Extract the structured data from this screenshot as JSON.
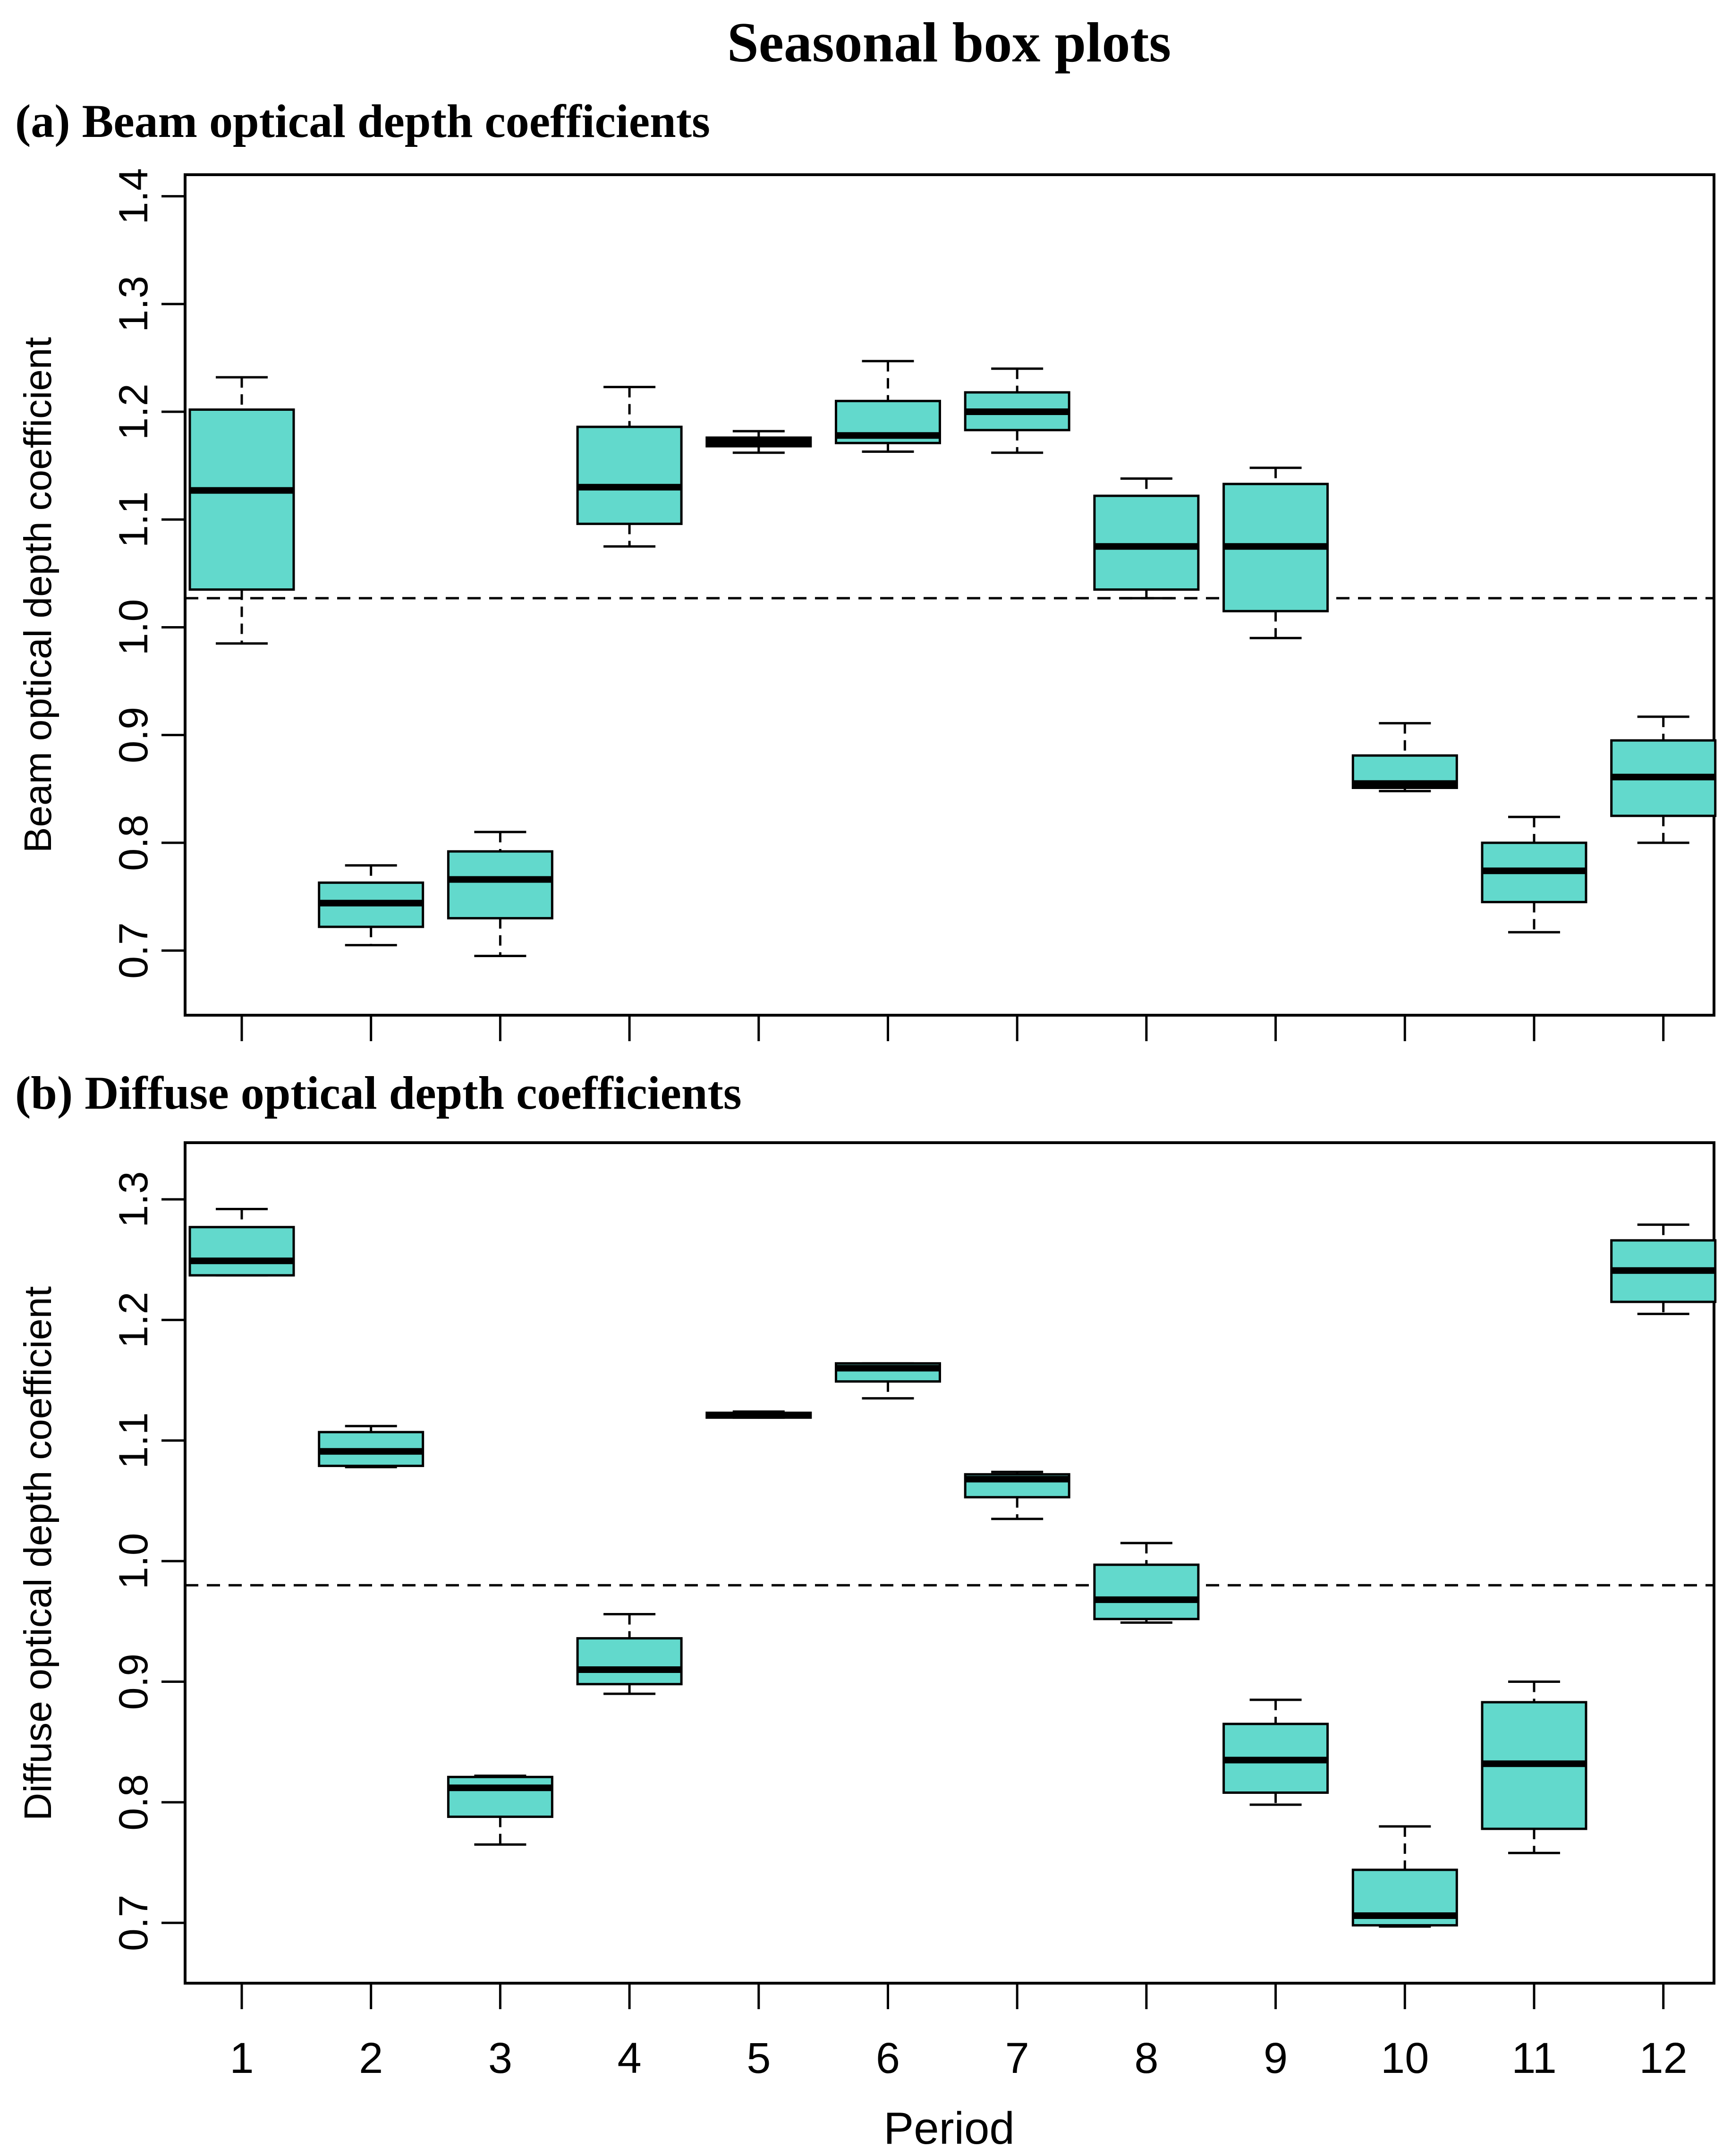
{
  "title": "Seasonal box plots",
  "xlabel": "Period",
  "colors": {
    "box_fill": "#62D9CC",
    "stroke": "#000000",
    "background": "#ffffff"
  },
  "chart_data": [
    {
      "id": "a",
      "type": "box",
      "panel_title": "(a) Beam optical depth coefficients",
      "ylabel": "Beam optical depth coefficient",
      "ylim": [
        0.64,
        1.42
      ],
      "yticks": [
        0.7,
        0.8,
        0.9,
        1.0,
        1.1,
        1.2,
        1.3,
        1.4
      ],
      "ytick_labels": [
        "0.7",
        "0.8",
        "0.9",
        "1.0",
        "1.1",
        "1.2",
        "1.3",
        "1.4"
      ],
      "reference_line": 1.027,
      "categories": [
        "1",
        "2",
        "3",
        "4",
        "5",
        "6",
        "7",
        "8",
        "9",
        "10",
        "11",
        "12"
      ],
      "boxes": [
        {
          "min": 0.985,
          "q1": 1.035,
          "median": 1.127,
          "q3": 1.202,
          "max": 1.232
        },
        {
          "min": 0.705,
          "q1": 0.722,
          "median": 0.744,
          "q3": 0.763,
          "max": 0.779
        },
        {
          "min": 0.695,
          "q1": 0.73,
          "median": 0.766,
          "q3": 0.792,
          "max": 0.81
        },
        {
          "min": 1.075,
          "q1": 1.096,
          "median": 1.13,
          "q3": 1.186,
          "max": 1.223
        },
        {
          "min": 1.162,
          "q1": 1.168,
          "median": 1.172,
          "q3": 1.176,
          "max": 1.182
        },
        {
          "min": 1.163,
          "q1": 1.171,
          "median": 1.178,
          "q3": 1.21,
          "max": 1.247
        },
        {
          "min": 1.162,
          "q1": 1.183,
          "median": 1.2,
          "q3": 1.218,
          "max": 1.24
        },
        {
          "min": 1.027,
          "q1": 1.035,
          "median": 1.075,
          "q3": 1.122,
          "max": 1.138
        },
        {
          "min": 0.99,
          "q1": 1.015,
          "median": 1.075,
          "q3": 1.133,
          "max": 1.148
        },
        {
          "min": 0.848,
          "q1": 0.851,
          "median": 0.855,
          "q3": 0.881,
          "max": 0.911
        },
        {
          "min": 0.717,
          "q1": 0.745,
          "median": 0.774,
          "q3": 0.8,
          "max": 0.824
        },
        {
          "min": 0.8,
          "q1": 0.825,
          "median": 0.861,
          "q3": 0.895,
          "max": 0.917
        }
      ]
    },
    {
      "id": "b",
      "type": "box",
      "panel_title": "(b) Diffuse optical depth coefficients",
      "ylabel": "Diffuse optical depth coefficient",
      "ylim": [
        0.65,
        1.347
      ],
      "yticks": [
        0.7,
        0.8,
        0.9,
        1.0,
        1.1,
        1.2,
        1.3
      ],
      "ytick_labels": [
        "0.7",
        "0.8",
        "0.9",
        "1.0",
        "1.1",
        "1.2",
        "1.3"
      ],
      "reference_line": 0.98,
      "categories": [
        "1",
        "2",
        "3",
        "4",
        "5",
        "6",
        "7",
        "8",
        "9",
        "10",
        "11",
        "12"
      ],
      "boxes": [
        {
          "min": 1.237,
          "q1": 1.237,
          "median": 1.249,
          "q3": 1.277,
          "max": 1.292
        },
        {
          "min": 1.078,
          "q1": 1.079,
          "median": 1.091,
          "q3": 1.107,
          "max": 1.112
        },
        {
          "min": 0.765,
          "q1": 0.788,
          "median": 0.812,
          "q3": 0.821,
          "max": 0.822
        },
        {
          "min": 0.89,
          "q1": 0.898,
          "median": 0.91,
          "q3": 0.936,
          "max": 0.956
        },
        {
          "min": 1.119,
          "q1": 1.119,
          "median": 1.121,
          "q3": 1.123,
          "max": 1.124
        },
        {
          "min": 1.135,
          "q1": 1.149,
          "median": 1.16,
          "q3": 1.164,
          "max": 1.164
        },
        {
          "min": 1.035,
          "q1": 1.053,
          "median": 1.068,
          "q3": 1.072,
          "max": 1.074
        },
        {
          "min": 0.949,
          "q1": 0.952,
          "median": 0.968,
          "q3": 0.997,
          "max": 1.015
        },
        {
          "min": 0.798,
          "q1": 0.808,
          "median": 0.835,
          "q3": 0.865,
          "max": 0.885
        },
        {
          "min": 0.697,
          "q1": 0.698,
          "median": 0.706,
          "q3": 0.744,
          "max": 0.78
        },
        {
          "min": 0.758,
          "q1": 0.778,
          "median": 0.832,
          "q3": 0.883,
          "max": 0.9
        },
        {
          "min": 1.205,
          "q1": 1.215,
          "median": 1.241,
          "q3": 1.266,
          "max": 1.279
        }
      ]
    }
  ]
}
